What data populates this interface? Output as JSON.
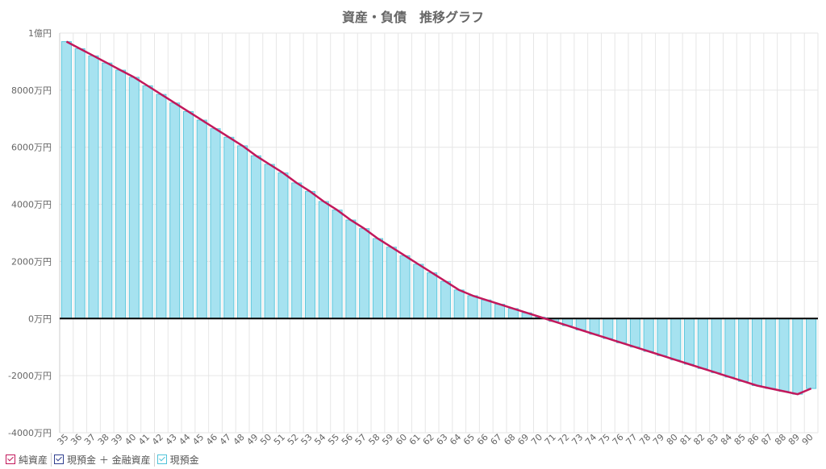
{
  "title": "資産・負債　推移グラフ",
  "colors": {
    "net_assets": "#c2185b",
    "cash_plus_financial": "#2f3f8f",
    "cash": "#4fc3d9",
    "bar_fill": "#a6e2f0",
    "bar_stroke": "#60c8dc",
    "zero_line": "#000000",
    "grid": "#e6e6e6"
  },
  "legend": [
    {
      "label": "純資産",
      "color": "#c2185b"
    },
    {
      "label": "現預金 ＋ 金融資産",
      "color": "#2f3f8f"
    },
    {
      "label": "現預金",
      "color": "#4fc3d9"
    }
  ],
  "chart_data": {
    "type": "bar",
    "title": "資産・負債　推移グラフ",
    "xlabel": "",
    "ylabel": "",
    "ylim": [
      -4000,
      10000
    ],
    "y_unit": "万円",
    "y_ticks": [
      {
        "value": 10000,
        "label": "1億円"
      },
      {
        "value": 8000,
        "label": "8000万円"
      },
      {
        "value": 6000,
        "label": "6000万円"
      },
      {
        "value": 4000,
        "label": "4000万円"
      },
      {
        "value": 2000,
        "label": "2000万円"
      },
      {
        "value": 0,
        "label": "0万円"
      },
      {
        "value": -2000,
        "label": "-2000万円"
      },
      {
        "value": -4000,
        "label": "-4000万円"
      }
    ],
    "grid": true,
    "legend_position": "bottom-left",
    "categories": [
      "35",
      "36",
      "37",
      "38",
      "39",
      "40",
      "41",
      "42",
      "43",
      "44",
      "45",
      "46",
      "47",
      "48",
      "49",
      "50",
      "51",
      "52",
      "53",
      "54",
      "55",
      "56",
      "57",
      "58",
      "59",
      "60",
      "61",
      "62",
      "63",
      "64",
      "65",
      "66",
      "67",
      "68",
      "69",
      "70",
      "71",
      "72",
      "73",
      "74",
      "75",
      "76",
      "77",
      "78",
      "79",
      "80",
      "81",
      "82",
      "83",
      "84",
      "85",
      "86",
      "87",
      "88",
      "89",
      "90"
    ],
    "series": [
      {
        "name": "現預金",
        "type": "bar",
        "values": [
          9700,
          9450,
          9200,
          8950,
          8700,
          8450,
          8150,
          7850,
          7550,
          7250,
          6950,
          6650,
          6350,
          6050,
          5700,
          5400,
          5100,
          4750,
          4450,
          4100,
          3800,
          3450,
          3150,
          2800,
          2500,
          2200,
          1900,
          1600,
          1300,
          1000,
          800,
          650,
          500,
          350,
          200,
          50,
          -100,
          -250,
          -400,
          -550,
          -700,
          -850,
          -1000,
          -1150,
          -1300,
          -1450,
          -1600,
          -1750,
          -1900,
          -2050,
          -2200,
          -2350,
          -2450,
          -2550,
          -2650,
          -2450
        ]
      },
      {
        "name": "純資産",
        "type": "line",
        "values": [
          9700,
          9450,
          9200,
          8950,
          8700,
          8450,
          8150,
          7850,
          7550,
          7250,
          6950,
          6650,
          6350,
          6050,
          5700,
          5400,
          5100,
          4750,
          4450,
          4100,
          3800,
          3450,
          3150,
          2800,
          2500,
          2200,
          1900,
          1600,
          1300,
          1000,
          800,
          650,
          500,
          350,
          200,
          50,
          -100,
          -250,
          -400,
          -550,
          -700,
          -850,
          -1000,
          -1150,
          -1300,
          -1450,
          -1600,
          -1750,
          -1900,
          -2050,
          -2200,
          -2350,
          -2450,
          -2550,
          -2650,
          -2450
        ]
      }
    ]
  }
}
